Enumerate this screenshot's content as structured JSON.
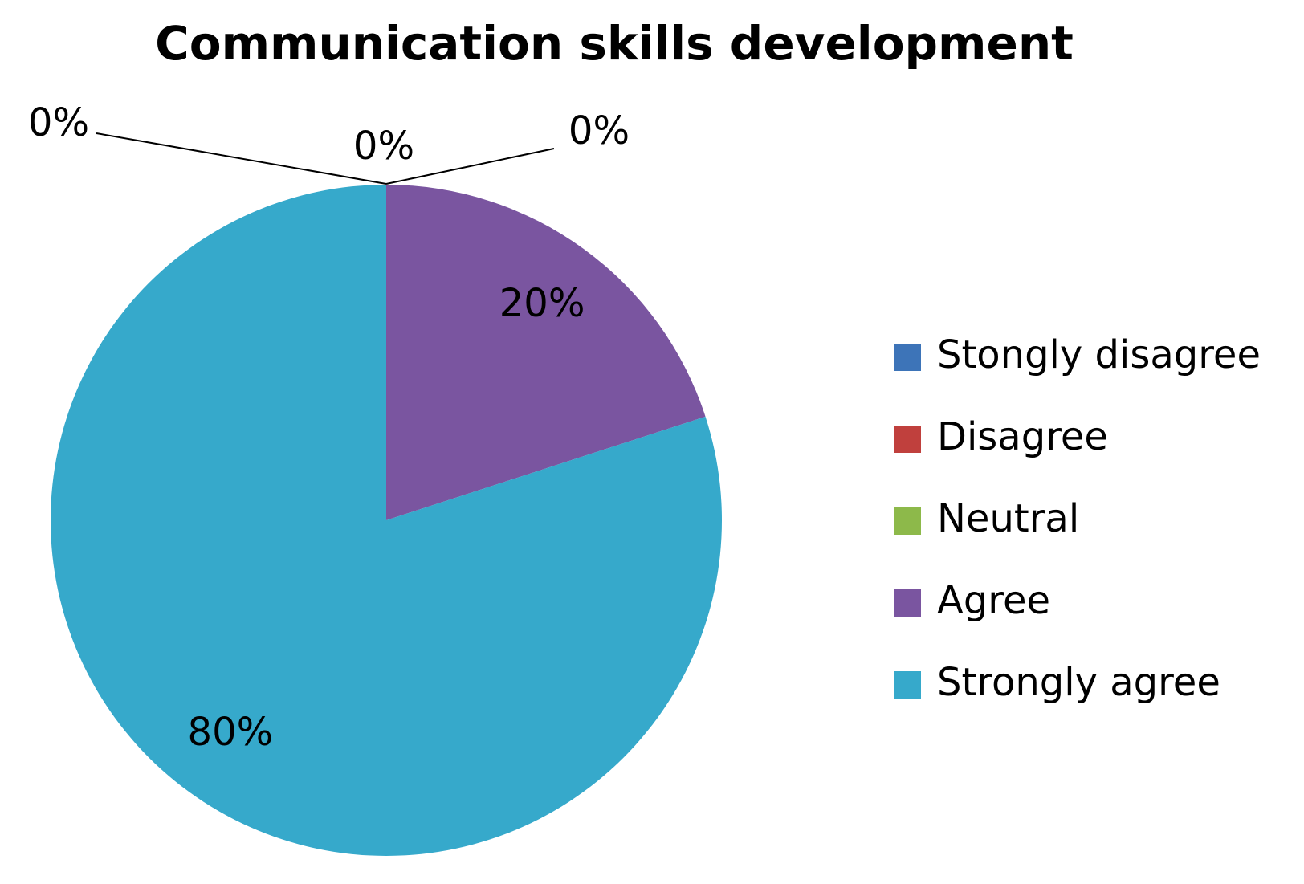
{
  "chart_data": {
    "type": "pie",
    "title": "Communication skills development",
    "categories": [
      "Stongly disagree",
      "Disagree",
      "Neutral",
      "Agree",
      "Strongly agree"
    ],
    "values": [
      0,
      0,
      0,
      20,
      80
    ],
    "value_labels": [
      "0%",
      "0%",
      "0%",
      "20%",
      "80%"
    ],
    "colors": [
      "#3d74b8",
      "#c0403d",
      "#8db94a",
      "#7a55a0",
      "#36a9cb"
    ],
    "legend": "right"
  }
}
